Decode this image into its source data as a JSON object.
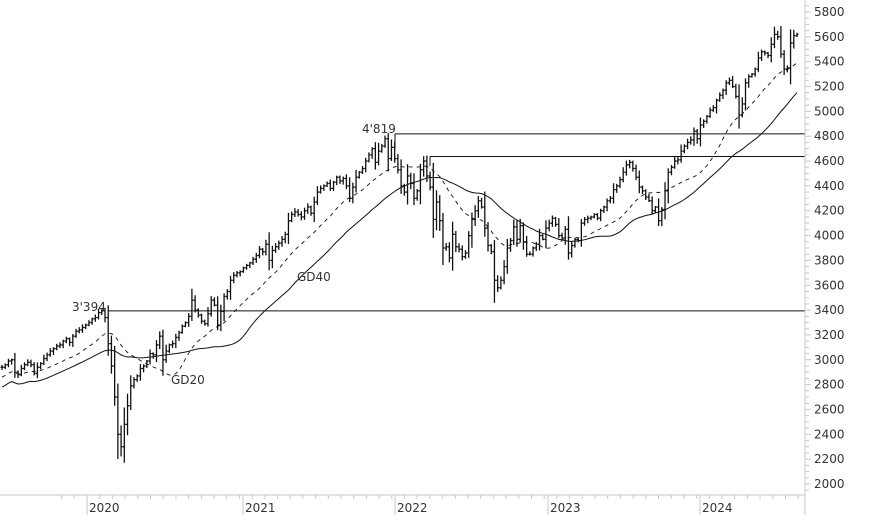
{
  "chart_data": {
    "type": "ohlc",
    "title": "",
    "xlabel": "",
    "ylabel": "",
    "ylim": [
      2000,
      5800
    ],
    "y_ticks": [
      2000,
      2200,
      2400,
      2600,
      2800,
      3000,
      3200,
      3400,
      3600,
      3800,
      4000,
      4200,
      4400,
      4600,
      4800,
      5000,
      5200,
      5400,
      5600,
      5800
    ],
    "x_ticks": [
      "2020",
      "2021",
      "2022",
      "2023",
      "2024"
    ],
    "grid": false,
    "legend": "none",
    "series": [
      {
        "name": "Price (weekly bars)",
        "style": "ohlc"
      },
      {
        "name": "GD20",
        "style": "dashed"
      },
      {
        "name": "GD40",
        "style": "solid"
      }
    ],
    "annotations": [
      {
        "label": "3'394",
        "value": 3394,
        "type": "horizontal-line"
      },
      {
        "label": "4'819",
        "value": 4819,
        "type": "horizontal-line"
      },
      {
        "label": "",
        "value": 4637,
        "type": "horizontal-line"
      },
      {
        "label": "GD20",
        "type": "line-label"
      },
      {
        "label": "GD40",
        "type": "line-label"
      }
    ],
    "closes_weekly": [
      2940,
      2960,
      2990,
      3000,
      2900,
      2880,
      2930,
      2960,
      2980,
      2960,
      2890,
      2940,
      2970,
      3010,
      3040,
      3070,
      3090,
      3110,
      3120,
      3150,
      3170,
      3140,
      3190,
      3230,
      3240,
      3260,
      3280,
      3300,
      3330,
      3340,
      3380,
      3394,
      3340,
      3130,
      2950,
      2700,
      2400,
      2300,
      2480,
      2630,
      2790,
      2840,
      2870,
      2930,
      2950,
      2990,
      3050,
      3040,
      3120,
      3190,
      3000,
      3070,
      3120,
      3130,
      3180,
      3220,
      3270,
      3300,
      3350,
      3480,
      3400,
      3360,
      3310,
      3290,
      3370,
      3480,
      3440,
      3280,
      3390,
      3510,
      3550,
      3640,
      3680,
      3700,
      3710,
      3740,
      3760,
      3780,
      3810,
      3840,
      3890,
      3870,
      3930,
      3800,
      3880,
      3910,
      3940,
      3970,
      4010,
      4120,
      4170,
      4190,
      4170,
      4150,
      4200,
      4230,
      4180,
      4270,
      4350,
      4380,
      4400,
      4420,
      4380,
      4430,
      4470,
      4440,
      4460,
      4400,
      4300,
      4390,
      4470,
      4510,
      4540,
      4600,
      4650,
      4700,
      4590,
      4680,
      4720,
      4780,
      4620,
      4710,
      4620,
      4530,
      4400,
      4350,
      4480,
      4420,
      4300,
      4360,
      4530,
      4600,
      4480,
      4390,
      4130,
      4270,
      4120,
      3900,
      3910,
      3820,
      4010,
      3910,
      3890,
      3830,
      3860,
      4000,
      4130,
      4200,
      4280,
      4230,
      4060,
      3920,
      3870,
      3640,
      3580,
      3640,
      3750,
      3900,
      3960,
      4070,
      3970,
      4080,
      3950,
      3850,
      3850,
      3900,
      3930,
      4000,
      3970,
      4060,
      4100,
      4140,
      4090,
      4000,
      3980,
      4050,
      3860,
      3920,
      3970,
      3960,
      4100,
      4130,
      4140,
      4150,
      4170,
      4140,
      4200,
      4230,
      4280,
      4300,
      4370,
      4400,
      4450,
      4510,
      4570,
      4590,
      4540,
      4470,
      4390,
      4360,
      4310,
      4280,
      4200,
      4230,
      4120,
      4210,
      4360,
      4510,
      4550,
      4600,
      4610,
      4680,
      4720,
      4750,
      4770,
      4840,
      4780,
      4890,
      4920,
      4960,
      5010,
      5030,
      5090,
      5130,
      5170,
      5230,
      5250,
      5200,
      5120,
      4970,
      5060,
      5230,
      5280,
      5300,
      5340,
      5430,
      5480,
      5470,
      5450,
      5540,
      5620,
      5600,
      5460,
      5340,
      5350,
      5550,
      5610,
      5620
    ]
  }
}
